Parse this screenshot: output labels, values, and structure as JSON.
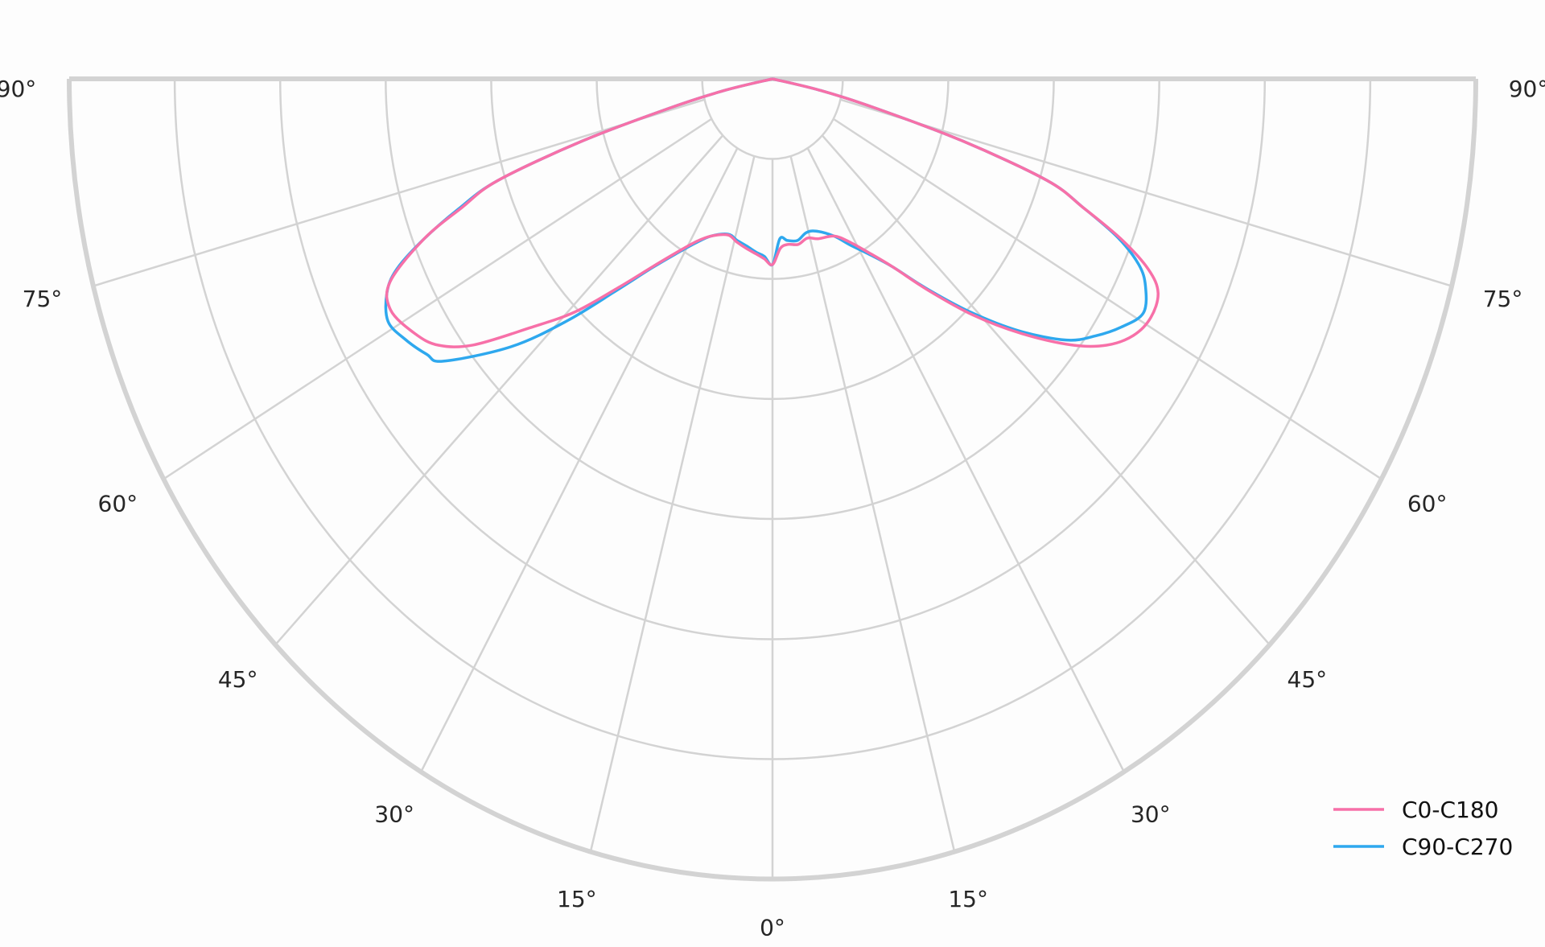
{
  "chart_data": {
    "type": "polar",
    "title": "",
    "angle_unit": "degrees",
    "angle_zero": "bottom",
    "angular_ticks": [
      "90°",
      "75°",
      "60°",
      "45°",
      "30°",
      "15°",
      "0°",
      "15°",
      "30°",
      "45°",
      "60°",
      "75°",
      "90°"
    ],
    "angular_tick_values": [
      -90,
      -75,
      -60,
      -45,
      -30,
      -15,
      0,
      15,
      30,
      45,
      60,
      75,
      90
    ],
    "radial_gridlines": [
      0.1,
      0.25,
      0.4,
      0.55,
      0.7,
      0.85,
      1.0
    ],
    "radial_tick_labels": [],
    "rlim": [
      0,
      1
    ],
    "grid": true,
    "legend_position": "bottom-right",
    "series": [
      {
        "name": "C0-C180",
        "color": "#f770a8",
        "points": [
          [
            -90,
            0
          ],
          [
            -78,
            0.07
          ],
          [
            -76,
            0.15
          ],
          [
            -74,
            0.28
          ],
          [
            -72,
            0.41
          ],
          [
            -70,
            0.47
          ],
          [
            -68,
            0.535
          ],
          [
            -65,
            0.6
          ],
          [
            -62,
            0.615
          ],
          [
            -58,
            0.6
          ],
          [
            -55,
            0.58
          ],
          [
            -52,
            0.54
          ],
          [
            -48,
            0.465
          ],
          [
            -44,
            0.405
          ],
          [
            -40,
            0.34
          ],
          [
            -36,
            0.29
          ],
          [
            -32,
            0.255
          ],
          [
            -28,
            0.23
          ],
          [
            -24,
            0.215
          ],
          [
            -18,
            0.205
          ],
          [
            -14,
            0.21
          ],
          [
            -10,
            0.215
          ],
          [
            -6,
            0.22
          ],
          [
            -3,
            0.225
          ],
          [
            0,
            0.232
          ],
          [
            3,
            0.212
          ],
          [
            6,
            0.208
          ],
          [
            10,
            0.21
          ],
          [
            14,
            0.205
          ],
          [
            18,
            0.21
          ],
          [
            24,
            0.215
          ],
          [
            28,
            0.23
          ],
          [
            32,
            0.255
          ],
          [
            36,
            0.29
          ],
          [
            40,
            0.345
          ],
          [
            44,
            0.41
          ],
          [
            48,
            0.475
          ],
          [
            52,
            0.54
          ],
          [
            55,
            0.58
          ],
          [
            58,
            0.605
          ],
          [
            61,
            0.615
          ],
          [
            64,
            0.61
          ],
          [
            66,
            0.585
          ],
          [
            68,
            0.535
          ],
          [
            70,
            0.47
          ],
          [
            72,
            0.41
          ],
          [
            74,
            0.28
          ],
          [
            76,
            0.15
          ],
          [
            78,
            0.07
          ],
          [
            90,
            0
          ]
        ]
      },
      {
        "name": "C90-C270",
        "color": "#2ea8ee",
        "points": [
          [
            -90,
            0
          ],
          [
            -78,
            0.07
          ],
          [
            -76,
            0.15
          ],
          [
            -74,
            0.28
          ],
          [
            -72,
            0.41
          ],
          [
            -70,
            0.475
          ],
          [
            -68,
            0.535
          ],
          [
            -66,
            0.585
          ],
          [
            -64,
            0.61
          ],
          [
            -61,
            0.625
          ],
          [
            -58,
            0.615
          ],
          [
            -55,
            0.6
          ],
          [
            -53,
            0.586
          ],
          [
            -48,
            0.5
          ],
          [
            -44,
            0.42
          ],
          [
            -40,
            0.345
          ],
          [
            -36,
            0.292
          ],
          [
            -32,
            0.257
          ],
          [
            -28,
            0.232
          ],
          [
            -24,
            0.215
          ],
          [
            -18,
            0.204
          ],
          [
            -14,
            0.208
          ],
          [
            -10,
            0.212
          ],
          [
            -6,
            0.218
          ],
          [
            -3,
            0.222
          ],
          [
            0,
            0.232
          ],
          [
            3,
            0.2
          ],
          [
            6,
            0.203
          ],
          [
            10,
            0.205
          ],
          [
            14,
            0.198
          ],
          [
            18,
            0.2
          ],
          [
            24,
            0.215
          ],
          [
            28,
            0.235
          ],
          [
            32,
            0.258
          ],
          [
            36,
            0.29
          ],
          [
            40,
            0.343
          ],
          [
            44,
            0.405
          ],
          [
            48,
            0.47
          ],
          [
            52,
            0.53
          ],
          [
            55,
            0.56
          ],
          [
            58,
            0.585
          ],
          [
            61,
            0.603
          ],
          [
            64,
            0.59
          ],
          [
            66,
            0.57
          ],
          [
            68,
            0.53
          ],
          [
            70,
            0.47
          ],
          [
            72,
            0.41
          ],
          [
            74,
            0.28
          ],
          [
            76,
            0.15
          ],
          [
            78,
            0.07
          ],
          [
            90,
            0
          ]
        ]
      }
    ]
  }
}
